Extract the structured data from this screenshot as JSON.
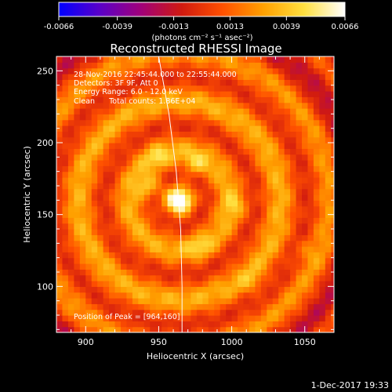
{
  "chart_data": {
    "type": "heatmap",
    "title": "Reconstructed RHESSI Image",
    "xlabel": "Heliocentric X (arcsec)",
    "ylabel": "Heliocentric Y (arcsec)",
    "xlim": [
      880,
      1070
    ],
    "ylim": [
      68,
      260
    ],
    "x_ticks": [
      900,
      950,
      1000,
      1050
    ],
    "y_ticks": [
      100,
      150,
      200,
      250
    ],
    "x_tick_labels": [
      "900",
      "950",
      "1000",
      "1050"
    ],
    "y_tick_labels": [
      "100",
      "150",
      "200",
      "250"
    ],
    "colorbar": {
      "range": [
        -0.0066,
        0.0066
      ],
      "tick_labels": [
        "-0.0066",
        "-0.0039",
        "-0.0013",
        "0.0013",
        "0.0039",
        "0.0066"
      ],
      "tick_values": [
        -0.0066,
        -0.0039,
        -0.0013,
        0.0013,
        0.0039,
        0.0066
      ],
      "unit_label": "(photons cm⁻² s⁻¹ asec⁻²)"
    },
    "peak": {
      "x": 964,
      "y": 160
    },
    "limb_points": [
      [
        950,
        260
      ],
      [
        957,
        220
      ],
      [
        962,
        180
      ],
      [
        965,
        140
      ],
      [
        966,
        100
      ],
      [
        966,
        68
      ]
    ],
    "bright_spots": [
      {
        "x": 964,
        "y": 160,
        "amp": 1.0
      },
      {
        "x": 944,
        "y": 170,
        "amp": 0.55
      },
      {
        "x": 975,
        "y": 185,
        "amp": 0.4
      },
      {
        "x": 950,
        "y": 190,
        "amp": 0.35
      },
      {
        "x": 1003,
        "y": 157,
        "amp": 0.3
      },
      {
        "x": 978,
        "y": 128,
        "amp": 0.3
      },
      {
        "x": 1014,
        "y": 103,
        "amp": 0.2
      },
      {
        "x": 1050,
        "y": 125,
        "amp": 0.22
      }
    ],
    "colors": {
      "background": "#000000",
      "foreground": "#ffffff",
      "colormap": [
        "#0000ff",
        "#5a00c8",
        "#a0007a",
        "#d01a10",
        "#ff5000",
        "#ffa000",
        "#ffe040",
        "#ffffff"
      ]
    }
  },
  "annotations": {
    "time_range": "28-Nov-2016 22:45:44.000 to 22:55:44.000",
    "detectors": "Detectors: 3F 9F, Att 0",
    "energy_range": "Energy Range: 6.0 - 12.0 keV",
    "clean_counts": "Clean      Total counts: 1.86E+04",
    "peak_position": "Position of Peak = [964,160]"
  },
  "footer": {
    "timestamp": "1-Dec-2017 19:33"
  }
}
